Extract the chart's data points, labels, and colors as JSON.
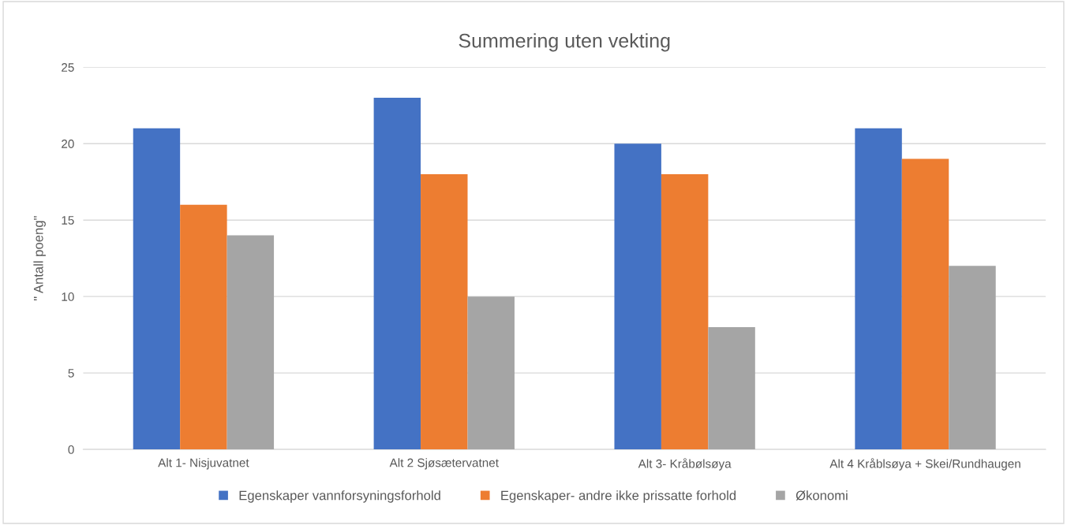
{
  "chart_data": {
    "type": "bar",
    "title": "Summering uten vekting",
    "ylabel": "\" Antall poeng\"",
    "categories": [
      "Alt 1- Nisjuvatnet",
      "Alt 2 Sjøsætervatnet",
      "Alt 3- Kråbølsøya",
      "Alt 4 Kråblsøya + Skei/Rundhaugen"
    ],
    "series": [
      {
        "name": "Egenskaper vannforsyningsforhold",
        "color": "#4472c4",
        "values": [
          21,
          23,
          20,
          21
        ]
      },
      {
        "name": "Egenskaper- andre ikke prissatte forhold",
        "color": "#ed7d31",
        "values": [
          16,
          18,
          18,
          19
        ]
      },
      {
        "name": "Økonomi",
        "color": "#a5a5a5",
        "values": [
          14,
          10,
          8,
          12
        ]
      }
    ],
    "ylim": [
      0,
      25
    ],
    "yticks": [
      0,
      5,
      10,
      15,
      20,
      25
    ],
    "grid": "y",
    "legend": "bottom"
  }
}
